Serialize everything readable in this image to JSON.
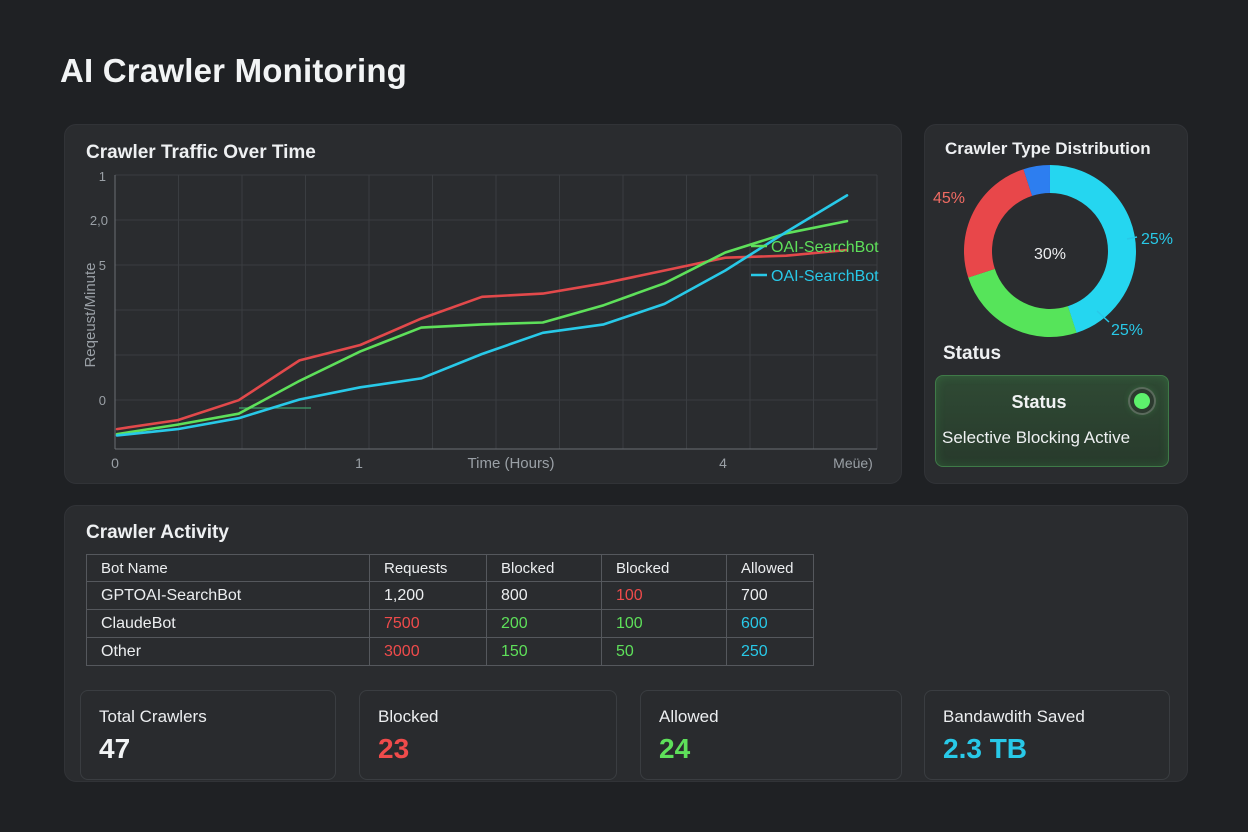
{
  "page": {
    "title": "AI Crawler Monitoring"
  },
  "traffic": {
    "title": "Crawler Traffic Over Time",
    "legend": [
      {
        "label": "OAI-SearchBot",
        "color": "#5ee05a"
      },
      {
        "label": "OAI-SearchBot",
        "color": "#28c9e8"
      }
    ]
  },
  "chart_data": {
    "type": "line",
    "title": "Crawler Traffic Over Time",
    "xlabel": "Time (Hours)",
    "ylabel": "Reqeust/Minute",
    "x_tick_labels": [
      "0",
      "1",
      "4",
      "Meüe)"
    ],
    "y_tick_labels": [
      "1",
      "2,0",
      "5",
      "0"
    ],
    "x": [
      0,
      0.5,
      1,
      1.5,
      2,
      2.5,
      3,
      3.5,
      4,
      4.5,
      5,
      5.5,
      6
    ],
    "grid": true,
    "series": [
      {
        "name": "red",
        "color": "#e2494b",
        "values": [
          3,
          17,
          48,
          110,
          134,
          175,
          209,
          214,
          230,
          250,
          270,
          273,
          282
        ]
      },
      {
        "name": "OAI-SearchBot",
        "color": "#5ee05a",
        "values": [
          -5,
          10,
          27,
          78,
          124,
          161,
          166,
          169,
          196,
          230,
          278,
          308,
          327
        ]
      },
      {
        "name": "OAI-SearchBot",
        "color": "#28c9e8",
        "values": [
          -7,
          3,
          20,
          49,
          68,
          82,
          120,
          153,
          166,
          198,
          250,
          310,
          367
        ]
      }
    ]
  },
  "distribution": {
    "title": "Crawler Type Distribution",
    "center_label": "30%",
    "labels": [
      {
        "text": "45%",
        "color": "#ef6b63"
      },
      {
        "text": "25%",
        "color": "#28c9e8"
      },
      {
        "text": "25%",
        "color": "#28c9e8"
      }
    ],
    "segments": [
      {
        "name": "cyan",
        "value": 45,
        "color": "#25d6f0"
      },
      {
        "name": "green",
        "value": 25,
        "color": "#56e45a"
      },
      {
        "name": "red",
        "value": 25,
        "color": "#e8474a"
      },
      {
        "name": "blue",
        "value": 5,
        "color": "#2d7ef0"
      }
    ]
  },
  "status": {
    "heading": "Status",
    "title": "Status",
    "text": "Selective Blocking Active"
  },
  "activity": {
    "title": "Crawler Activity",
    "headers": [
      "Bot Name",
      "Requests",
      "Blocked",
      "Blocked",
      "Allowed"
    ],
    "rows": [
      [
        "GPTOAI-SearchBot",
        "1,200",
        "800",
        "100",
        "700"
      ],
      [
        "ClaudeBot",
        "7500",
        "200",
        "100",
        "600"
      ],
      [
        "Other",
        "3000",
        "150",
        "50",
        "250"
      ]
    ]
  },
  "stats": [
    {
      "label": "Total Crawlers",
      "value": "47",
      "color": "#f2f4f5"
    },
    {
      "label": "Blocked",
      "value": "23",
      "color": "#ef4b4b"
    },
    {
      "label": "Allowed",
      "value": "24",
      "color": "#5ee05a"
    },
    {
      "label": "Bandawdith Saved",
      "value": "2.3 TB",
      "color": "#28c9e8"
    }
  ]
}
